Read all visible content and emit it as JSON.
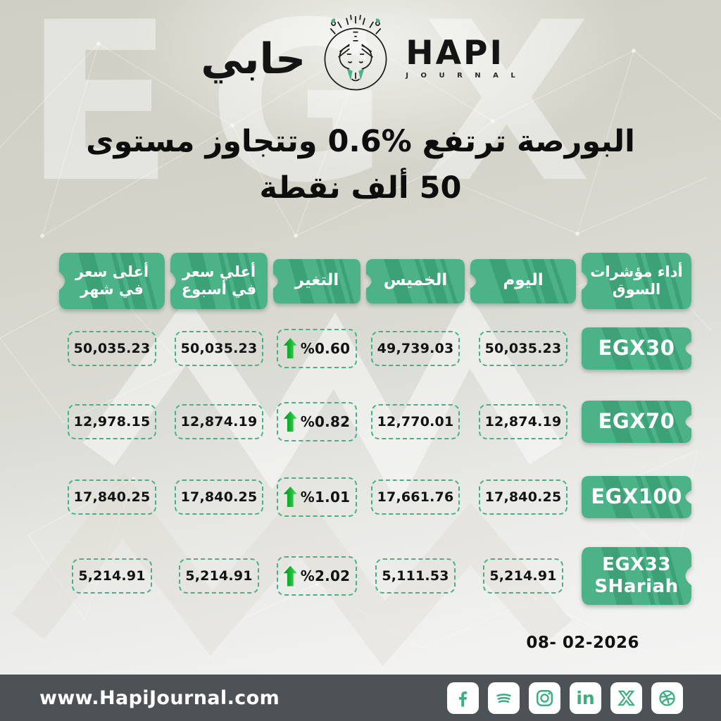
{
  "logo": {
    "arabic": "حابي",
    "name": "HAPI",
    "subtitle": "J O U R N A L"
  },
  "title": {
    "line1": "البورصة ترتفع %0.6 وتتجاوز مستوى",
    "line2": "50 ألف نقطة"
  },
  "table": {
    "headers": {
      "index": "أداء مؤشرات السوق",
      "today": "اليوم",
      "thursday": "الخميس",
      "change": "التغير",
      "week_high": "أعلي سعر في أسبوع",
      "month_high": "أعلى سعر في شهر"
    },
    "rows": [
      {
        "index": "EGX30",
        "today": "50,035.23",
        "thursday": "49,739.03",
        "change": "%0.60",
        "week_high": "50,035.23",
        "month_high": "50,035.23"
      },
      {
        "index": "EGX70",
        "today": "12,874.19",
        "thursday": "12,770.01",
        "change": "%0.82",
        "week_high": "12,874.19",
        "month_high": "12,978.15"
      },
      {
        "index": "EGX100",
        "today": "17,840.25",
        "thursday": "17,661.76",
        "change": "%1.01",
        "week_high": "17,840.25",
        "month_high": "17,840.25"
      },
      {
        "index": "EGX33 SHariah",
        "today": "5,214.91",
        "thursday": "5,111.53",
        "change": "%2.02",
        "week_high": "5,214.91",
        "month_high": "5,214.91"
      }
    ]
  },
  "chart_data": {
    "type": "table",
    "title": "البورصة ترتفع %0.6 وتتجاوز مستوى 50 ألف نقطة",
    "columns": [
      "أداء مؤشرات السوق",
      "اليوم",
      "الخميس",
      "التغير %",
      "أعلي سعر في أسبوع",
      "أعلى سعر في شهر"
    ],
    "rows": [
      [
        "EGX30",
        50035.23,
        49739.03,
        0.6,
        50035.23,
        50035.23
      ],
      [
        "EGX70",
        12874.19,
        12770.01,
        0.82,
        12874.19,
        12978.15
      ],
      [
        "EGX100",
        17840.25,
        17661.76,
        1.01,
        17840.25,
        17840.25
      ],
      [
        "EGX33 SHariah",
        5214.91,
        5111.53,
        2.02,
        5214.91,
        5214.91
      ]
    ]
  },
  "date": "08- 02-2026",
  "watermarks": {
    "egx": "EGX"
  },
  "footer": {
    "website": "www.HapiJournal.com",
    "social": [
      "facebook",
      "spotify",
      "instagram",
      "linkedin",
      "x",
      "dribbble"
    ]
  },
  "colors": {
    "green": "#4cb388",
    "green_stripe": "#2f8f66",
    "dash_green": "#43b385",
    "arrow_green": "#17b231",
    "footer_bg": "#4d5256"
  }
}
